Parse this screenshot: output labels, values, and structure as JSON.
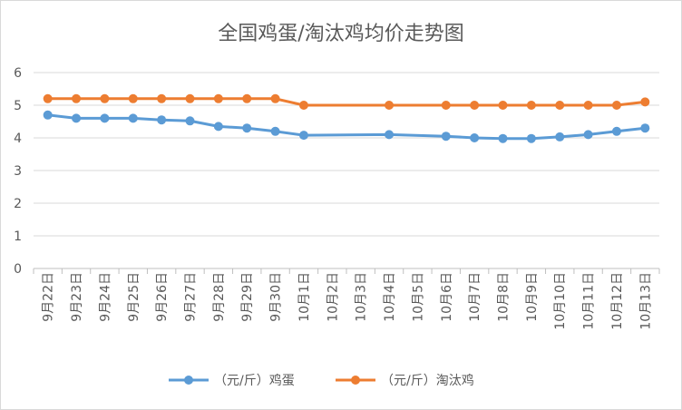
{
  "chart_data": {
    "type": "line",
    "title": "全国鸡蛋/淘汰鸡均价走势图",
    "categories": [
      "9月22日",
      "9月23日",
      "9月24日",
      "9月25日",
      "9月26日",
      "9月27日",
      "9月28日",
      "9月29日",
      "9月30日",
      "10月1日",
      "10月2日",
      "10月3日",
      "10月4日",
      "10月5日",
      "10月6日",
      "10月7日",
      "10月8日",
      "10月9日",
      "10月10日",
      "10月11日",
      "10月12日",
      "10月13日"
    ],
    "series": [
      {
        "name": "（元/斤）鸡蛋",
        "color": "#5b9bd5",
        "values": [
          4.7,
          4.6,
          4.6,
          4.6,
          4.55,
          4.52,
          4.35,
          4.3,
          4.2,
          4.08,
          null,
          null,
          4.1,
          null,
          4.05,
          4.0,
          3.98,
          3.98,
          4.03,
          4.1,
          4.2,
          4.3
        ]
      },
      {
        "name": "（元/斤）淘汰鸡",
        "color": "#ed7d31",
        "values": [
          5.2,
          5.2,
          5.2,
          5.2,
          5.2,
          5.2,
          5.2,
          5.2,
          5.2,
          5.0,
          null,
          null,
          5.0,
          null,
          5.0,
          5.0,
          5.0,
          5.0,
          5.0,
          5.0,
          5.0,
          5.1
        ]
      }
    ],
    "y_ticks": [
      "0",
      "1",
      "2",
      "3",
      "4",
      "5",
      "6"
    ],
    "ylim": [
      0,
      6
    ],
    "grid": true,
    "legend_position": "bottom"
  }
}
